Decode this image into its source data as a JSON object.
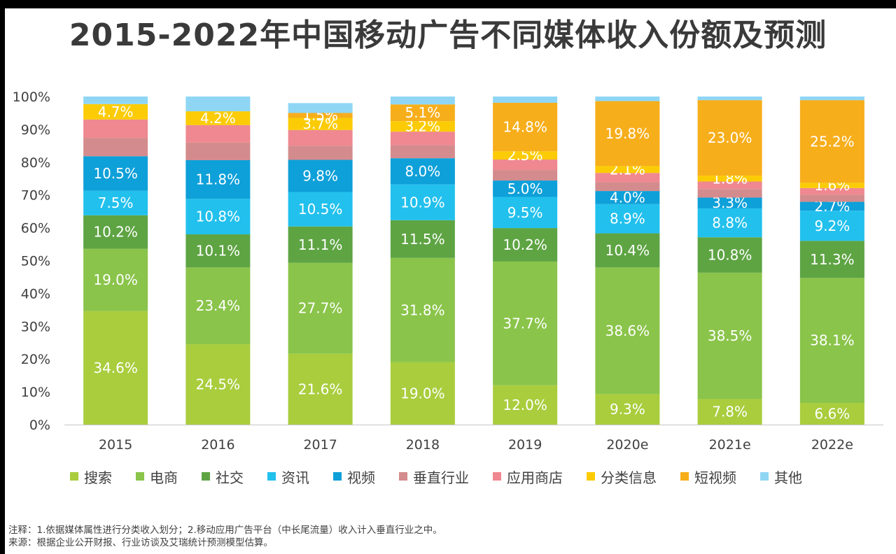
{
  "title": "2015-2022年中国移动广告不同媒体收入份额及预测",
  "chart_data": {
    "type": "bar",
    "stacked": true,
    "categories": [
      "2015",
      "2016",
      "2017",
      "2018",
      "2019",
      "2020e",
      "2021e",
      "2022e"
    ],
    "ylim": [
      0,
      100
    ],
    "yticks": [
      "0%",
      "10%",
      "20%",
      "30%",
      "40%",
      "50%",
      "60%",
      "70%",
      "80%",
      "90%",
      "100%"
    ],
    "grid": false,
    "legend_position": "bottom",
    "series": [
      {
        "name": "搜索",
        "color": "#a9cd3d",
        "values": [
          34.6,
          24.5,
          21.6,
          19.0,
          12.0,
          9.3,
          7.8,
          6.6
        ],
        "labels": [
          "34.6%",
          "24.5%",
          "21.6%",
          "19.0%",
          "12.0%",
          "9.3%",
          "7.8%",
          "6.6%"
        ]
      },
      {
        "name": "电商",
        "color": "#8ac44a",
        "values": [
          19.0,
          23.4,
          27.7,
          31.8,
          37.7,
          38.6,
          38.5,
          38.1
        ],
        "labels": [
          "19.0%",
          "23.4%",
          "27.7%",
          "31.8%",
          "37.7%",
          "38.6%",
          "38.5%",
          "38.1%"
        ]
      },
      {
        "name": "社交",
        "color": "#5ea443",
        "values": [
          10.2,
          10.1,
          11.1,
          11.5,
          10.2,
          10.4,
          10.8,
          11.3
        ],
        "labels": [
          "10.2%",
          "10.1%",
          "11.1%",
          "11.5%",
          "10.2%",
          "10.4%",
          "10.8%",
          "11.3%"
        ]
      },
      {
        "name": "资讯",
        "color": "#22c0ed",
        "values": [
          7.5,
          10.8,
          10.5,
          10.9,
          9.5,
          8.9,
          8.8,
          9.2
        ],
        "labels": [
          "7.5%",
          "10.8%",
          "10.5%",
          "10.9%",
          "9.5%",
          "8.9%",
          "8.8%",
          "9.2%"
        ]
      },
      {
        "name": "视频",
        "color": "#0ea0d9",
        "values": [
          10.5,
          11.8,
          9.8,
          8.0,
          5.0,
          4.0,
          3.3,
          2.7
        ],
        "labels": [
          "10.5%",
          "11.8%",
          "9.8%",
          "8.0%",
          "5.0%",
          "4.0%",
          "3.3%",
          "2.7%"
        ]
      },
      {
        "name": "垂直行业",
        "color": "#d48b8d",
        "values": [
          5.6,
          5.4,
          4.3,
          4.0,
          3.2,
          2.7,
          2.6,
          2.2
        ],
        "labels": [
          "",
          "",
          "",
          "",
          "",
          "",
          "",
          ""
        ]
      },
      {
        "name": "应用商店",
        "color": "#ef8890",
        "values": [
          5.6,
          5.3,
          4.8,
          4.1,
          3.2,
          2.8,
          2.3,
          2.0
        ],
        "labels": [
          "",
          "",
          "",
          "",
          "",
          "",
          "",
          ""
        ]
      },
      {
        "name": "分类信息",
        "color": "#fbcc05",
        "values": [
          4.7,
          4.2,
          3.7,
          3.2,
          2.5,
          2.1,
          1.8,
          1.6
        ],
        "labels": [
          "4.7%",
          "4.2%",
          "3.7%",
          "3.2%",
          "2.5%",
          "2.1%",
          "1.8%",
          "1.6%"
        ]
      },
      {
        "name": "短视频",
        "color": "#f7ae1b",
        "values": [
          0,
          0,
          1.5,
          5.1,
          14.8,
          19.8,
          23.0,
          25.2
        ],
        "labels": [
          "",
          "",
          "1.5%",
          "5.1%",
          "14.8%",
          "19.8%",
          "23.0%",
          "25.2%"
        ]
      },
      {
        "name": "其他",
        "color": "#8fd6f5",
        "values": [
          2.3,
          4.5,
          3.0,
          2.4,
          1.9,
          1.4,
          1.1,
          1.1
        ],
        "labels": [
          "",
          "",
          "",
          "",
          "",
          "",
          "",
          ""
        ]
      }
    ]
  },
  "footnotes": {
    "note": "注释：1.依据媒体属性进行分类收入划分；2.移动应用广告平台（中长尾流量）收入计入垂直行业之中。",
    "source": "来源：根据企业公开财报、行业访谈及艾瑞统计预测模型估算。"
  }
}
